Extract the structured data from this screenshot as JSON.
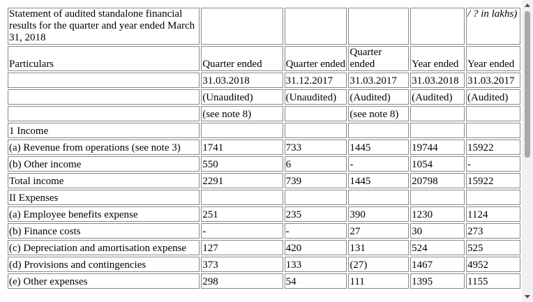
{
  "table": {
    "rows": [
      [
        "Statement of audited standalone financial results for the quarter and year ended March 31, 2018",
        null,
        null,
        null,
        null,
        "/ ? in lakhs)"
      ],
      [
        "Particulars",
        "Quarter ended",
        "Quarter ended",
        "Quarter ended",
        "Year ended",
        "Year ended"
      ],
      [
        null,
        "31.03.2018",
        "31.12.2017",
        "31.03.2017",
        "31.03.2018",
        "31.03.2017"
      ],
      [
        null,
        "(Unaudited)",
        "(Unaudited)",
        "(Audited)",
        "(Audited)",
        "(Audited)"
      ],
      [
        null,
        "(see note 8)",
        null,
        "(see note 8)",
        null,
        null
      ],
      [
        "1 Income",
        null,
        null,
        null,
        null,
        null
      ],
      [
        "(a) Revenue from operations (see note 3)",
        "1741",
        "733",
        "1445",
        "19744",
        "15922"
      ],
      [
        "(b) Other income",
        "550",
        "6",
        "-",
        "1054",
        "-"
      ],
      [
        "Total income",
        "2291",
        "739",
        "1445",
        "20798",
        "15922"
      ],
      [
        "II Expenses",
        null,
        null,
        null,
        null,
        null
      ],
      [
        "(a) Employee benefits expense",
        "251",
        "235",
        "390",
        "1230",
        "1124"
      ],
      [
        "(b) Finance costs",
        "-",
        "-",
        "27",
        "30",
        "273"
      ],
      [
        "(c) Depreciation and amortisation expense",
        "127",
        "420",
        "131",
        "524",
        "525"
      ],
      [
        "(d) Provisions and contingencies",
        "373",
        "133",
        "(27)",
        "1467",
        "4952"
      ],
      [
        "(e) Other expenses",
        "298",
        "54",
        "111",
        "1395",
        "1155"
      ]
    ]
  }
}
